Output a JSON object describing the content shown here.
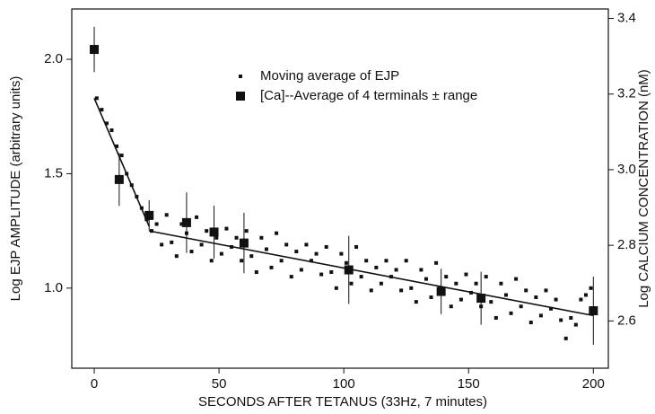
{
  "chart_data": {
    "type": "scatter",
    "xlabel": "SECONDS AFTER TETANUS  (33Hz, 7 minutes)",
    "ylabel": "Log EJP AMPLITUDE (arbitrary units)",
    "y2label": "Log CALCIUM CONCENTRATION  (nM)",
    "xlim": [
      -9,
      206
    ],
    "ylim": [
      0.65,
      2.22
    ],
    "y2lim": [
      2.475,
      3.425
    ],
    "xticks": [
      0,
      50,
      100,
      150,
      200
    ],
    "yticks": [
      {
        "value": 2.0,
        "label": "2.0"
      },
      1.5,
      {
        "value": 1.0,
        "label": "1.0"
      }
    ],
    "y2ticks": [
      3.4,
      3.2,
      {
        "value": 3.0,
        "label": "3.0"
      },
      2.8,
      2.6
    ],
    "legend": "top",
    "series": [
      {
        "name": "Moving average of EJP",
        "color": "#111111",
        "marker": "small-square",
        "x": [
          1,
          3,
          5,
          7,
          9,
          11,
          13,
          15,
          17,
          19,
          21,
          23,
          25,
          27,
          29,
          31,
          33,
          35,
          37,
          39,
          41,
          43,
          45,
          47,
          49,
          51,
          53,
          55,
          57,
          59,
          61,
          63,
          65,
          67,
          69,
          71,
          73,
          75,
          77,
          79,
          81,
          83,
          85,
          87,
          89,
          91,
          93,
          95,
          97,
          99,
          101,
          103,
          105,
          107,
          109,
          111,
          113,
          115,
          117,
          119,
          121,
          123,
          125,
          127,
          129,
          131,
          133,
          135,
          137,
          139,
          141,
          143,
          145,
          147,
          149,
          151,
          153,
          155,
          157,
          159,
          161,
          163,
          165,
          167,
          169,
          171,
          173,
          175,
          177,
          179,
          181,
          183,
          185,
          187,
          189,
          191,
          193,
          195,
          197,
          199
        ],
        "values": [
          1.83,
          1.78,
          1.72,
          1.69,
          1.62,
          1.58,
          1.5,
          1.45,
          1.4,
          1.35,
          1.3,
          1.25,
          1.28,
          1.19,
          1.32,
          1.2,
          1.14,
          1.28,
          1.24,
          1.16,
          1.31,
          1.19,
          1.25,
          1.12,
          1.22,
          1.15,
          1.26,
          1.18,
          1.22,
          1.12,
          1.25,
          1.14,
          1.07,
          1.22,
          1.17,
          1.09,
          1.24,
          1.12,
          1.19,
          1.05,
          1.16,
          1.08,
          1.19,
          1.12,
          1.15,
          1.06,
          1.18,
          1.07,
          1.0,
          1.15,
          1.11,
          1.02,
          1.18,
          1.05,
          1.12,
          0.99,
          1.09,
          1.02,
          1.12,
          1.05,
          1.08,
          0.99,
          1.12,
          1.0,
          0.94,
          1.08,
          1.04,
          0.96,
          1.11,
          0.99,
          1.05,
          0.92,
          1.02,
          0.95,
          1.06,
          0.98,
          1.02,
          0.92,
          1.05,
          0.94,
          0.87,
          1.02,
          0.97,
          0.89,
          1.04,
          0.92,
          0.99,
          0.85,
          0.96,
          0.88,
          0.99,
          0.91,
          0.95,
          0.86,
          0.78,
          0.87,
          0.84,
          0.95,
          0.97,
          1.0
        ]
      },
      {
        "name": "[Ca]--Average of 4 terminals ± range",
        "color": "#111111",
        "marker": "square",
        "axis": "y2",
        "x": [
          0,
          10,
          22,
          37,
          48,
          60,
          102,
          139,
          155,
          200
        ],
        "values": [
          3.318,
          2.974,
          2.879,
          2.86,
          2.835,
          2.806,
          2.735,
          2.678,
          2.66,
          2.627
        ],
        "errors": [
          0.06,
          0.07,
          0.04,
          0.08,
          0.07,
          0.08,
          0.09,
          0.06,
          0.07,
          0.09
        ]
      }
    ],
    "fit_lines": [
      {
        "x": [
          0,
          22
        ],
        "values": [
          1.83,
          1.27
        ]
      },
      {
        "x": [
          22,
          200
        ],
        "values": [
          1.25,
          0.88
        ]
      }
    ]
  }
}
